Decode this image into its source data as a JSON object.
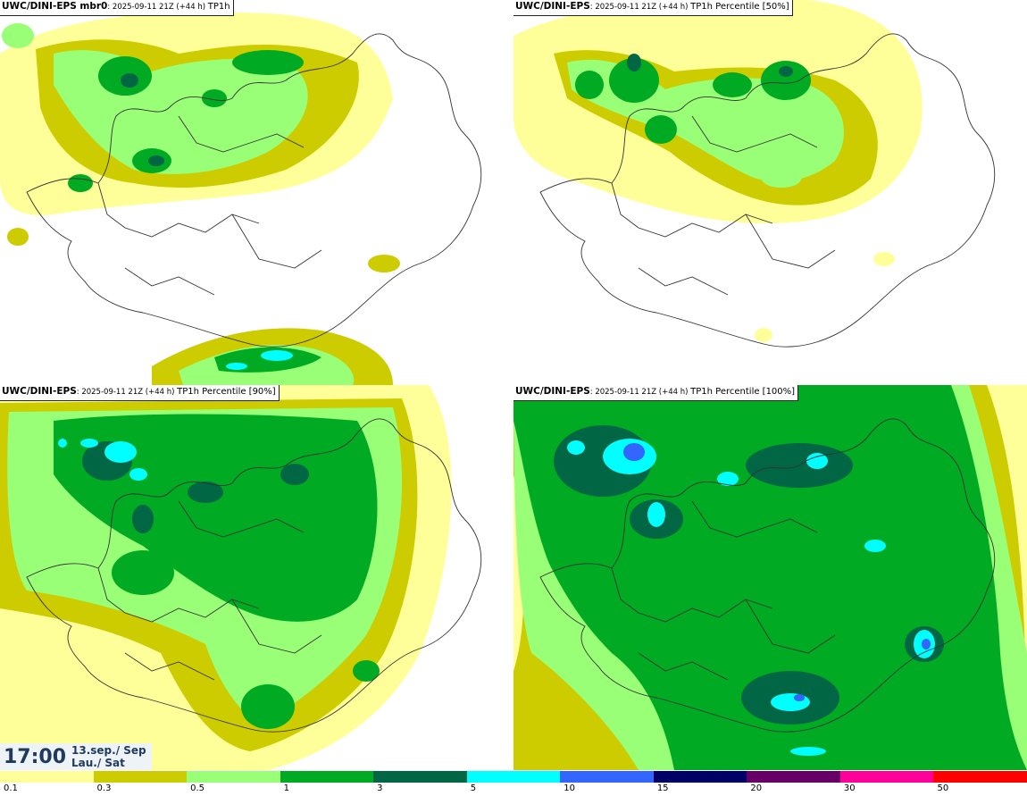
{
  "panels": [
    {
      "model": "UWC/DINI-EPS mbr0",
      "run": ": 2025-09-11 21Z (+44 h) ",
      "field": "TP1h"
    },
    {
      "model": "UWC/DINI-EPS",
      "run": ": 2025-09-11 21Z (+44 h) ",
      "field": "TP1h Percentile [50%]"
    },
    {
      "model": "UWC/DINI-EPS",
      "run": ": 2025-09-11 21Z (+44 h) ",
      "field": "TP1h Percentile [90%]"
    },
    {
      "model": "UWC/DINI-EPS",
      "run": ": 2025-09-11 21Z (+44 h) ",
      "field": "TP1h Percentile [100%]"
    }
  ],
  "valid_time": {
    "time": "17:00",
    "date_line": "13.sep./ Sep",
    "day_line": "Lau./ Sat"
  },
  "legend": {
    "ticks": [
      "0.1",
      "0.3",
      "0.5",
      "1",
      "3",
      "5",
      "10",
      "15",
      "20",
      "30",
      "50"
    ],
    "colors": [
      "#ffff99",
      "#cccc00",
      "#99ff77",
      "#00aa22",
      "#006644",
      "#00ffff",
      "#3366ff",
      "#000066",
      "#660066",
      "#ff0099",
      "#ff0000"
    ]
  },
  "palette": {
    "c1": "#ffff99",
    "c2": "#cccc00",
    "c3": "#99ff77",
    "c4": "#00aa22",
    "c5": "#006644",
    "c6": "#00ffff",
    "c7": "#3366ff"
  }
}
